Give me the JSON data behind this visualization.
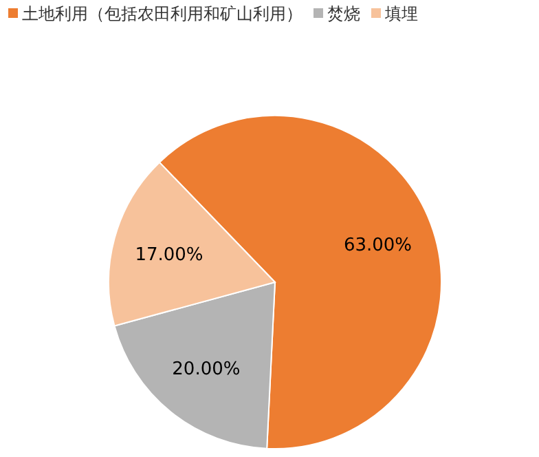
{
  "chart_data": {
    "type": "pie",
    "categories": [
      "土地利用（包括农田利用和矿山利用）",
      "焚烧",
      "填埋"
    ],
    "values": [
      63,
      20,
      17
    ],
    "colors": [
      "#ed7d31",
      "#b4b4b4",
      "#f7c29b"
    ],
    "value_labels": [
      "63.00%",
      "20.00%",
      "17.00%"
    ],
    "legend": "top left"
  }
}
